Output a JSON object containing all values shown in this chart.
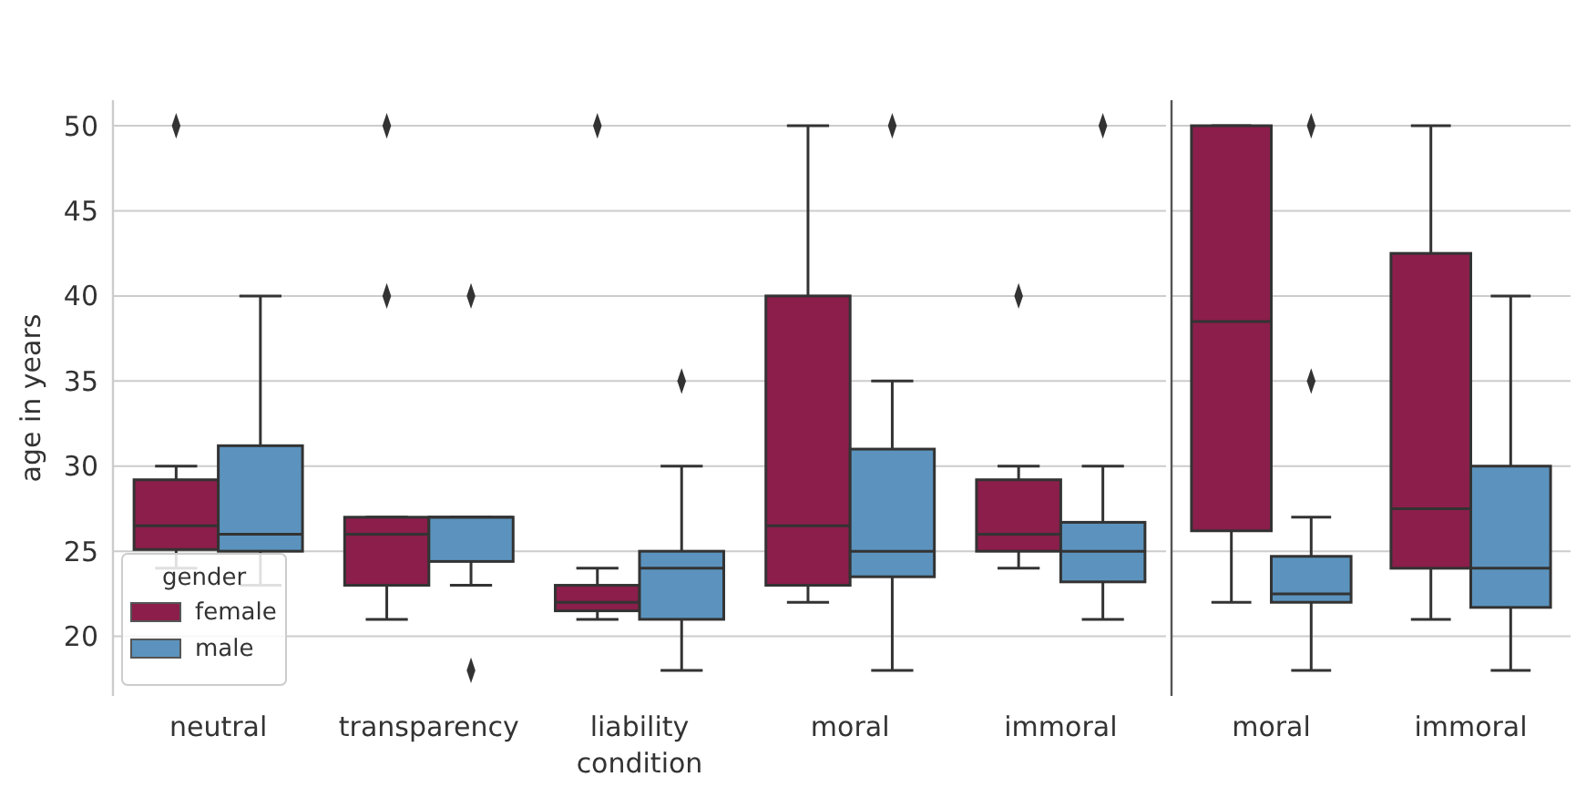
{
  "chart_data": [
    {
      "type": "box",
      "categories": [
        "neutral",
        "transparency",
        "liability",
        "moral",
        "immoral"
      ],
      "xlabel": "condition",
      "ylabel": "age in years",
      "ylim": [
        16.5,
        51.5
      ],
      "yticks": [
        20,
        25,
        30,
        35,
        40,
        45,
        50
      ],
      "grid": "y",
      "legend": "bottom left",
      "legend_title": "gender",
      "marker": "diamond",
      "series": [
        {
          "name": "female",
          "color": "#8b1e4b",
          "boxes": [
            {
              "low": 24,
              "q1": 25.1,
              "median": 26.5,
              "q3": 29.2,
              "high": 30,
              "outliers": [
                50
              ]
            },
            {
              "low": 21,
              "q1": 23,
              "median": 26,
              "q3": 27,
              "high": 27,
              "outliers": [
                40,
                50
              ]
            },
            {
              "low": 21,
              "q1": 21.5,
              "median": 22,
              "q3": 23,
              "high": 24,
              "outliers": [
                50
              ]
            },
            {
              "low": 22,
              "q1": 23,
              "median": 26.5,
              "q3": 40,
              "high": 50
            },
            {
              "low": 24,
              "q1": 25,
              "median": 26,
              "q3": 29.2,
              "high": 30,
              "outliers": [
                40
              ]
            }
          ]
        },
        {
          "name": "male",
          "color": "#5b93be",
          "boxes": [
            {
              "low": 23,
              "q1": 25,
              "median": 26,
              "q3": 31.2,
              "high": 40
            },
            {
              "low": 23,
              "q1": 24.4,
              "median": 27,
              "q3": 27,
              "high": 27,
              "outliers": [
                40,
                18
              ]
            },
            {
              "low": 18,
              "q1": 21,
              "median": 24,
              "q3": 25,
              "high": 30,
              "outliers": [
                35
              ]
            },
            {
              "low": 18,
              "q1": 23.5,
              "median": 25,
              "q3": 31,
              "high": 35,
              "outliers": [
                50
              ]
            },
            {
              "low": 21,
              "q1": 23.2,
              "median": 25,
              "q3": 26.7,
              "high": 30,
              "outliers": [
                50
              ]
            }
          ]
        }
      ]
    },
    {
      "type": "box",
      "categories": [
        "moral",
        "immoral"
      ],
      "ylim": [
        16.5,
        51.5
      ],
      "yticks": [
        20,
        25,
        30,
        35,
        40,
        45,
        50
      ],
      "grid": "y",
      "tick_labels": "x",
      "marker": "diamond",
      "series": [
        {
          "color": "#8b1e4b",
          "boxes": [
            {
              "low": 22,
              "q1": 26.2,
              "median": 38.5,
              "q3": 50,
              "high": 50
            },
            {
              "low": 21,
              "q1": 24,
              "median": 27.5,
              "q3": 42.5,
              "high": 50
            }
          ]
        },
        {
          "color": "#5b93be",
          "boxes": [
            {
              "low": 18,
              "q1": 22,
              "median": 22.5,
              "q3": 24.7,
              "high": 27,
              "outliers": [
                50,
                35
              ]
            },
            {
              "low": 18,
              "q1": 21.7,
              "median": 24,
              "q3": 30,
              "high": 40
            }
          ]
        }
      ]
    }
  ]
}
